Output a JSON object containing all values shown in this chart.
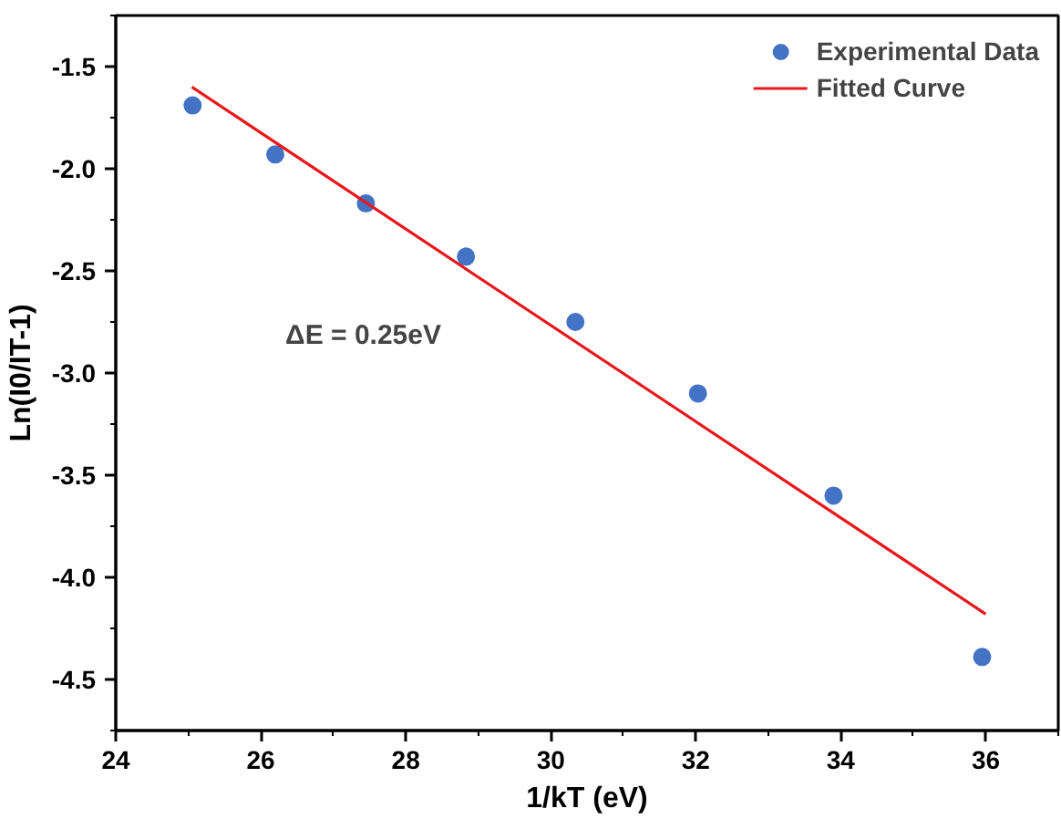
{
  "chart_data": {
    "type": "scatter",
    "xlabel": "1/kT (eV)",
    "ylabel": "Ln(I0/IT-1)",
    "xlim": [
      24,
      37
    ],
    "ylim": [
      -4.75,
      -1.25
    ],
    "xticks": [
      24,
      26,
      28,
      30,
      32,
      34,
      36
    ],
    "yticks": [
      -4.5,
      {
        "value": -4,
        "label": "-4.0"
      },
      -3.5,
      {
        "value": -3,
        "label": "-3.0"
      },
      -2.5,
      {
        "value": -2,
        "label": "-2.0"
      },
      -1.5
    ],
    "grid": false,
    "legend": "top right",
    "annotations": [
      "ΔE = 0.25eV"
    ],
    "series": [
      {
        "name": "Experimental Data",
        "marker": "circle",
        "color": "#4472c4",
        "x": [
          25.06,
          26.2,
          27.45,
          28.83,
          30.34,
          32.03,
          33.9,
          35.95
        ],
        "values": [
          -1.69,
          -1.93,
          -2.17,
          -2.43,
          -2.75,
          -3.1,
          -3.6,
          -4.39
        ]
      },
      {
        "name": "Fitted Curve",
        "type": "line",
        "color": "#e8171b",
        "line_style": "solid",
        "x": [
          25.05,
          36.0
        ],
        "values": [
          -1.6,
          -4.18
        ]
      }
    ]
  }
}
